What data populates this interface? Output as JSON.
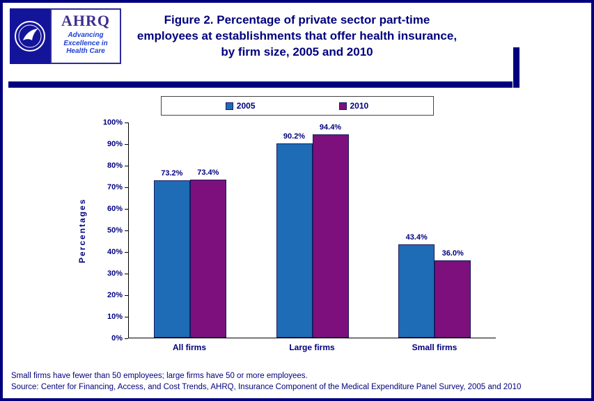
{
  "header": {
    "logo": {
      "hhs_name": "hhs-seal",
      "ahrq_name": "AHRQ",
      "tagline_line1": "Advancing",
      "tagline_line2": "Excellence in",
      "tagline_line3": "Health Care"
    },
    "title": "Figure 2. Percentage of private sector part-time employees at establishments that offer health insurance, by firm size, 2005 and 2010"
  },
  "chart_data": {
    "type": "bar",
    "categories": [
      "All firms",
      "Large firms",
      "Small firms"
    ],
    "series": [
      {
        "name": "2005",
        "color": "#1E6CB5",
        "values": [
          73.2,
          90.2,
          43.4
        ]
      },
      {
        "name": "2010",
        "color": "#7D107D",
        "values": [
          73.4,
          94.4,
          36.0
        ]
      }
    ],
    "value_labels": [
      [
        "73.2%",
        "90.2%",
        "43.4%"
      ],
      [
        "73.4%",
        "94.4%",
        "36.0%"
      ]
    ],
    "title": "",
    "xlabel": "",
    "ylabel": "Percentages",
    "ylim": [
      0,
      100
    ],
    "yticks": [
      "0%",
      "10%",
      "20%",
      "30%",
      "40%",
      "50%",
      "60%",
      "70%",
      "80%",
      "90%",
      "100%"
    ],
    "legend_position": "top",
    "grid": false
  },
  "footer": {
    "note": "Small firms have fewer than 50 employees; large firms have 50 or more employees.",
    "source": "Source: Center for Financing, Access, and Cost Trends, AHRQ, Insurance Component of the Medical Expenditure Panel Survey, 2005 and 2010"
  },
  "colors": {
    "accent": "#00007E",
    "series_2005": "#1E6CB5",
    "series_2010": "#7D107D",
    "bar_border": "#1A1A5E"
  }
}
